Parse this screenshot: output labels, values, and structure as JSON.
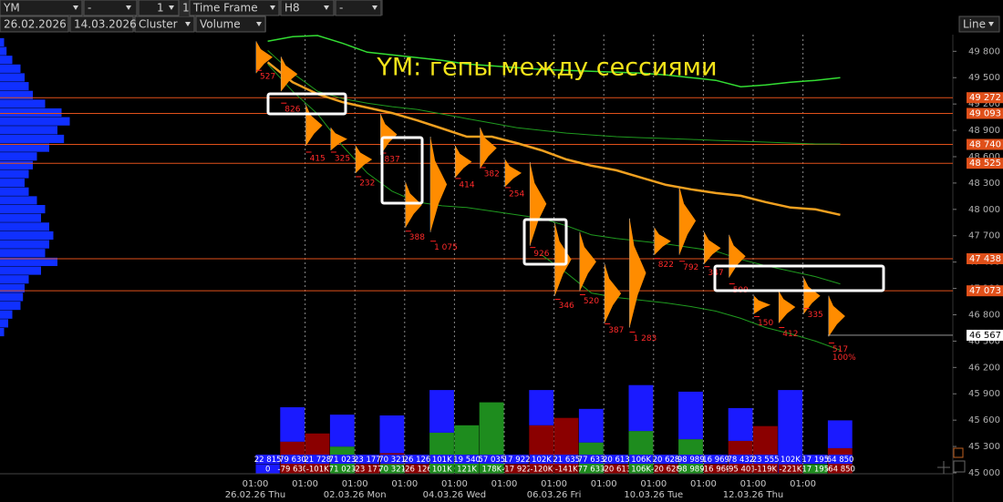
{
  "toolbar": {
    "symbol": "YM",
    "field2": "-",
    "count": "1",
    "count_step": "1",
    "timeframe": "Time Frame",
    "period": "H8",
    "field7": "-",
    "date_from": "26.02.2026",
    "date_to": "14.03.2026",
    "chart_type": "Cluster",
    "mode": "Volume",
    "view": "Line"
  },
  "chart_data": {
    "type": "cluster",
    "title": "YM: гепы между сессиями",
    "ylim": [
      45000,
      49990
    ],
    "yticks": [
      {
        "value": 49800,
        "label": "49 800"
      },
      {
        "value": 49500,
        "label": "49 500"
      },
      {
        "value": 49200,
        "label": "49 200"
      },
      {
        "value": 48900,
        "label": "48 900"
      },
      {
        "value": 48600,
        "label": "48 600"
      },
      {
        "value": 48300,
        "label": "48 300"
      },
      {
        "value": 48000,
        "label": "48 000"
      },
      {
        "value": 47700,
        "label": "47 700"
      },
      {
        "value": 47400,
        "label": "47 400"
      },
      {
        "value": 47100,
        "label": "47 100"
      },
      {
        "value": 46800,
        "label": "46 800"
      },
      {
        "value": 46500,
        "label": "46 500"
      },
      {
        "value": 46200,
        "label": "46 200"
      },
      {
        "value": 45900,
        "label": "45 900"
      },
      {
        "value": 45600,
        "label": "45 600"
      },
      {
        "value": 45300,
        "label": "45 300"
      },
      {
        "value": 45000,
        "label": "45 000"
      }
    ],
    "levels": {
      "values": [
        49272,
        49093,
        48740,
        48525,
        47438,
        47073
      ],
      "value_labels": [
        "49 272",
        "49 093",
        "48 740",
        "48 525",
        "47 438",
        "47 073"
      ],
      "color": "#e0501a"
    },
    "last_price": {
      "value": 46567,
      "label": "46 567"
    },
    "columns": {
      "high": [
        49914,
        49738,
        49190,
        48931,
        48724,
        49086,
        48310,
        48828,
        48724,
        48931,
        48569,
        48538,
        47845,
        47741,
        47379,
        47897,
        47793,
        48259,
        47741,
        47710,
        47017,
        47069,
        47224,
        47017
      ],
      "low": [
        49552,
        49345,
        48724,
        48672,
        48414,
        48621,
        47793,
        47741,
        48362,
        48466,
        48259,
        47586,
        47017,
        47069,
        46707,
        46655,
        47483,
        47483,
        47379,
        47224,
        46810,
        46707,
        46810,
        46552
      ],
      "close": [
        49583,
        49210,
        48652,
        48652,
        48372,
        48641,
        47752,
        47638,
        48352,
        48476,
        48248,
        47566,
        46976,
        47028,
        46697,
        46603,
        47441,
        47410,
        47348,
        47152,
        46779,
        46655,
        46872,
        46479
      ],
      "values": [
        527,
        826,
        415,
        325,
        232,
        837,
        388,
        1075,
        414,
        382,
        254,
        926,
        346,
        520,
        387,
        1283,
        822,
        792,
        347,
        509,
        150,
        412,
        335,
        517
      ],
      "value_labels": [
        "527",
        "826",
        "415",
        "325",
        "232",
        "837",
        "388",
        "1 075",
        "414",
        "382",
        "254",
        "926",
        "346",
        "520",
        "387",
        "1 283",
        "822",
        "792",
        "347",
        "509",
        "150",
        "412",
        "335",
        "517"
      ],
      "color": "#ff8c00"
    },
    "final_label": {
      "value": 100,
      "label": "100%"
    },
    "series": [
      {
        "color": "#f0a020",
        "values": [
          49676,
          49448,
          49314,
          49221,
          49159,
          49097,
          49014,
          48921,
          48828,
          48828,
          48755,
          48672,
          48569,
          48497,
          48445,
          48362,
          48279,
          48228,
          48186,
          48155,
          48083,
          48021,
          48000,
          47938
        ]
      },
      {
        "color": "#33dd33",
        "values": [
          49914,
          49966,
          49980,
          49893,
          49790,
          49759,
          49728,
          49697,
          49655,
          49634,
          49614,
          49593,
          49583,
          49572,
          49562,
          49552,
          49531,
          49500,
          49469,
          49397,
          49417,
          49448,
          49469,
          49500
        ]
      },
      {
        "color": "#1f9a1f",
        "values": [
          49810,
          49552,
          49345,
          49262,
          49210,
          49169,
          49138,
          49086,
          49034,
          48983,
          48931,
          48900,
          48869,
          48848,
          48828,
          48817,
          48807,
          48797,
          48786,
          48776,
          48766,
          48755,
          48745,
          48745
        ]
      },
      {
        "color": "#1f9a1f",
        "values": [
          49655,
          49345,
          49086,
          48724,
          48414,
          48207,
          48083,
          48041,
          48021,
          47979,
          47938,
          47897,
          47814,
          47710,
          47669,
          47638,
          47607,
          47566,
          47524,
          47431,
          47359,
          47297,
          47235,
          47152
        ]
      },
      {
        "color": "#1f9a1f",
        "values": [
          null,
          null,
          null,
          null,
          null,
          null,
          null,
          null,
          null,
          null,
          null,
          47483,
          47276,
          47048,
          46997,
          46966,
          46935,
          46893,
          46841,
          46759,
          46655,
          46583,
          46500,
          46397
        ]
      }
    ],
    "time_labels": [
      "01:00",
      "01:00",
      "01:00",
      "01:00",
      "01:00",
      "01:00",
      "01:00",
      "01:00",
      "01:00",
      "01:00",
      "01:00",
      "01:00"
    ],
    "date_labels": [
      "26.02.26 Thu",
      "02.03.26 Mon",
      "04.03.26 Wed",
      "06.03.26 Fri",
      "10.03.26 Tue",
      "12.03.26 Thu"
    ],
    "volume": {
      "values": [
        22815,
        79630,
        21728,
        71023,
        23177,
        70321,
        26126,
        101000,
        19540,
        57035,
        17922,
        102000,
        21635,
        77633,
        20613,
        106000,
        20628,
        98989,
        16969,
        78432,
        23555,
        102000,
        17195,
        64850
      ],
      "value_labels": [
        "22 815",
        "79 630",
        "21 728",
        "71 023",
        "23 177",
        "70 321",
        "26 126",
        "101K",
        "19 540",
        "57 035",
        "17 922",
        "102K",
        "21 635",
        "77 633",
        "20 613",
        "106K",
        "20 628",
        "98 989",
        "16 969",
        "78 432",
        "23 555",
        "102K",
        "17 195",
        "64 850"
      ]
    },
    "delta": {
      "values": [
        0,
        -79630,
        -101000,
        71023,
        -23177,
        70321,
        -26126,
        101000,
        121000,
        178000,
        -17922,
        -120000,
        -141000,
        77633,
        -20613,
        106000,
        -20628,
        98989,
        -16969,
        -95401,
        -119000,
        -221000,
        17195,
        -64850
      ],
      "value_labels": [
        "0",
        "-79 630",
        "-101K",
        "71 023",
        "-23 177",
        "70 321",
        "-26 126",
        "101K",
        "121K",
        "178K",
        "-17 922",
        "-120K",
        "-141K",
        "77 633",
        "-20 613",
        "106K",
        "-20 628",
        "98 989",
        "-16 969",
        "-95 401",
        "-119K",
        "-221K",
        "17 195",
        "-64 850"
      ]
    },
    "histogram": {
      "ylim": [
        0,
        110
      ],
      "series": [
        {
          "colors": [
            "#8b0000",
            "#8b0000",
            "#8b0000",
            "#1e8c1e",
            "#8b0000",
            "#8b0000",
            "#8b0000",
            "#1e8c1e",
            "#1e8c1e",
            "#1e8c1e",
            "#8b0000",
            "#8b0000",
            "#8b0000",
            "#1e8c1e",
            "#8b0000",
            "#1e8c1e",
            "#8b0000",
            "#1e8c1e",
            "#8b0000",
            "#8b0000",
            "#8b0000",
            "#8b0000",
            "#8b0000",
            "#8b0000"
          ],
          "values": [
            0,
            38,
            48,
            32,
            0,
            24,
            0,
            49,
            58,
            86,
            0,
            58,
            67,
            37,
            0,
            51,
            0,
            41,
            0,
            39,
            57,
            0,
            0,
            30
          ]
        },
        {
          "color": "#1a1aff",
          "values": [
            0,
            42,
            0,
            39,
            0,
            46,
            0,
            52,
            0,
            0,
            0,
            43,
            0,
            41,
            0,
            56,
            0,
            58,
            0,
            40,
            0,
            101,
            0,
            34
          ]
        }
      ]
    },
    "profile": {
      "color": "#1030ff",
      "prices": [
        49900,
        49800,
        49700,
        49600,
        49500,
        49400,
        49300,
        49200,
        49100,
        49000,
        48900,
        48800,
        48700,
        48600,
        48500,
        48400,
        48300,
        48200,
        48100,
        48000,
        47900,
        47800,
        47700,
        47600,
        47500,
        47400,
        47300,
        47200,
        47100,
        47000,
        46900,
        46800,
        46700,
        46600
      ],
      "values": [
        5,
        8,
        15,
        25,
        30,
        35,
        40,
        55,
        75,
        85,
        70,
        78,
        60,
        45,
        40,
        35,
        30,
        35,
        45,
        55,
        50,
        60,
        65,
        60,
        55,
        70,
        50,
        35,
        30,
        28,
        25,
        15,
        10,
        5
      ]
    }
  }
}
